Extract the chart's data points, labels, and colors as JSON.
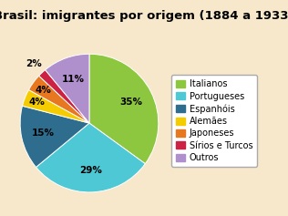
{
  "title": "Brasil: imigrantes por origem (1884 a 1933)",
  "slices": [
    {
      "label": "Italianos",
      "value": 35,
      "color": "#8dc63f",
      "pct": "35%"
    },
    {
      "label": "Portugueses",
      "value": 29,
      "color": "#4ec8d4",
      "pct": "29%"
    },
    {
      "label": "Espanhóis",
      "value": 15,
      "color": "#2e6d8e",
      "pct": "15%"
    },
    {
      "label": "Alemães",
      "value": 4,
      "color": "#f5cc00",
      "pct": "4%"
    },
    {
      "label": "Japoneses",
      "value": 4,
      "color": "#e87820",
      "pct": "4%"
    },
    {
      "label": "Sírios e Turcos",
      "value": 2,
      "color": "#cc2244",
      "pct": "2%"
    },
    {
      "label": "Outros",
      "value": 11,
      "color": "#b090cc",
      "pct": "11%"
    }
  ],
  "title_bg": "#f5a94a",
  "chart_bg": "#f7e8cc",
  "startangle": 90,
  "title_fontsize": 9.5,
  "pct_fontsize": 7.5,
  "legend_fontsize": 7.0
}
